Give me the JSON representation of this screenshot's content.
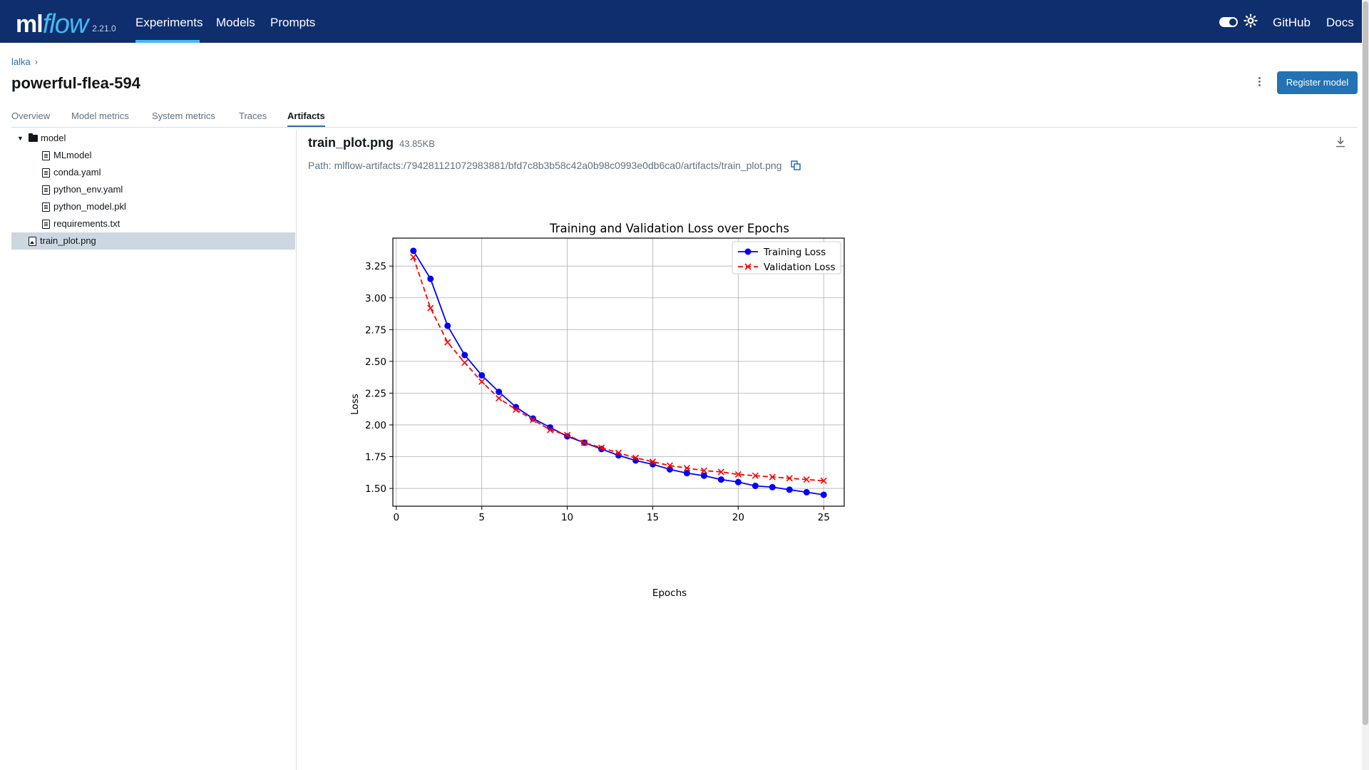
{
  "app": {
    "logo_ml": "ml",
    "logo_flow": "flow",
    "version": "2.21.0",
    "nav": [
      {
        "label": "Experiments",
        "active": true
      },
      {
        "label": "Models",
        "active": false
      },
      {
        "label": "Prompts",
        "active": false
      }
    ],
    "github_label": "GitHub",
    "docs_label": "Docs",
    "brand_color": "#0e2e6e",
    "accent_color": "#43b9f0"
  },
  "run": {
    "breadcrumb": "lalka",
    "title": "powerful-flea-594",
    "register_label": "Register model",
    "tabs": [
      {
        "label": "Overview",
        "active": false
      },
      {
        "label": "Model metrics",
        "active": false
      },
      {
        "label": "System metrics",
        "active": false
      },
      {
        "label": "Traces",
        "active": false
      },
      {
        "label": "Artifacts",
        "active": true
      }
    ]
  },
  "tree": {
    "folder": "model",
    "children": [
      "MLmodel",
      "conda.yaml",
      "python_env.yaml",
      "python_model.pkl",
      "requirements.txt"
    ],
    "selected": "train_plot.png"
  },
  "artifact": {
    "name": "train_plot.png",
    "size": "43.85KB",
    "path": "Path: mlflow-artifacts:/794281121072983881/bfd7c8b3b58c42a0b98c0993e0db6ca0/artifacts/train_plot.png"
  },
  "chart_data": {
    "type": "line",
    "title": "Training and Validation Loss over Epochs",
    "xlabel": "Epochs",
    "ylabel": "Loss",
    "xlim": [
      -0.2,
      26.2
    ],
    "ylim": [
      1.36,
      3.47
    ],
    "xticks": [
      0,
      5,
      10,
      15,
      20,
      25
    ],
    "yticks": [
      1.5,
      1.75,
      2.0,
      2.25,
      2.5,
      2.75,
      3.0,
      3.25
    ],
    "ytick_labels": [
      "1.50",
      "1.75",
      "2.00",
      "2.25",
      "2.50",
      "2.75",
      "3.00",
      "3.25"
    ],
    "grid": true,
    "legend_position": "top-right",
    "x": [
      1,
      2,
      3,
      4,
      5,
      6,
      7,
      8,
      9,
      10,
      11,
      12,
      13,
      14,
      15,
      16,
      17,
      18,
      19,
      20,
      21,
      22,
      23,
      24,
      25
    ],
    "series": [
      {
        "name": "Training Loss",
        "color": "#0000ff",
        "style": "solid",
        "marker": "circle",
        "values": [
          3.37,
          3.15,
          2.78,
          2.55,
          2.39,
          2.26,
          2.14,
          2.05,
          1.98,
          1.91,
          1.86,
          1.81,
          1.76,
          1.72,
          1.69,
          1.65,
          1.62,
          1.6,
          1.57,
          1.55,
          1.52,
          1.51,
          1.49,
          1.47,
          1.45
        ]
      },
      {
        "name": "Validation Loss",
        "color": "#ff0000",
        "style": "dashed",
        "marker": "x",
        "values": [
          3.32,
          2.92,
          2.65,
          2.49,
          2.34,
          2.21,
          2.12,
          2.04,
          1.96,
          1.92,
          1.86,
          1.82,
          1.78,
          1.74,
          1.71,
          1.68,
          1.66,
          1.64,
          1.63,
          1.61,
          1.6,
          1.59,
          1.58,
          1.57,
          1.56
        ]
      }
    ]
  }
}
